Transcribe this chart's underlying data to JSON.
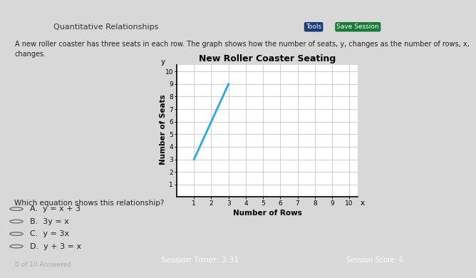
{
  "title": "New Roller Coaster Seating",
  "xlabel": "Number of Rows",
  "ylabel": "Number of Seats",
  "x_label_var": "x",
  "y_label_var": "y",
  "xlim": [
    0,
    10.5
  ],
  "ylim": [
    0,
    10.5
  ],
  "xticks": [
    1,
    2,
    3,
    4,
    5,
    6,
    7,
    8,
    9,
    10
  ],
  "yticks": [
    1,
    2,
    3,
    4,
    5,
    6,
    7,
    8,
    9,
    10
  ],
  "line_x": [
    1,
    3
  ],
  "line_y": [
    3,
    9
  ],
  "line_color": "#29a8e0",
  "line_width": 2.0,
  "bg_color": "#d8d8d8",
  "plot_bg": "#ffffff",
  "header_bar_color": "#e05c20",
  "header_bg": "#f0f0f0",
  "header_text": "Quantitative Relationships",
  "tools_btn_color": "#1a3a7a",
  "save_btn_color": "#1a7a3a",
  "body_text": "A new roller coaster has three seats in each row. The graph shows how the number of seats, y, changes as the number of rows, x,\nchanges.",
  "question_text": "Which equation shows this relationship?",
  "choices": [
    "A.  y = x + 3",
    "B.  3y = x",
    "C.  y = 3x",
    "D.  y + 3 = x"
  ],
  "session_timer": "Session Timer: 3:31",
  "session_score": "Session Score: 6",
  "bottom_left": "of 10 Answered",
  "grid_color": "#bbbbbb",
  "tick_fontsize": 6.5,
  "axis_label_fontsize": 7.5,
  "title_fontsize": 9,
  "body_fontsize": 7,
  "choice_fontsize": 8
}
